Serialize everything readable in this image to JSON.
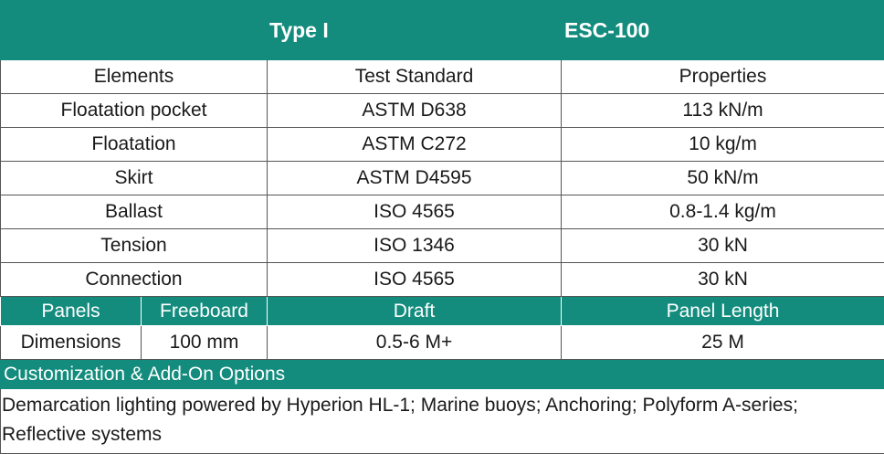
{
  "title": {
    "type": "Type I",
    "model": "ESC-100"
  },
  "columns": {
    "elements": "Elements",
    "standard": "Test Standard",
    "properties": "Properties"
  },
  "rows": [
    {
      "element": "Floatation pocket",
      "standard": "ASTM D638",
      "property": "113 kN/m"
    },
    {
      "element": "Floatation",
      "standard": "ASTM C272",
      "property": "10 kg/m"
    },
    {
      "element": "Skirt",
      "standard": "ASTM D4595",
      "property": "50 kN/m"
    },
    {
      "element": "Ballast",
      "standard": "ISO 4565",
      "property": "0.8-1.4 kg/m"
    },
    {
      "element": "Tension",
      "standard": "ISO 1346",
      "property": "30 kN"
    },
    {
      "element": "Connection",
      "standard": "ISO 4565",
      "property": "30 kN"
    }
  ],
  "panel_header": {
    "panels": "Panels",
    "freeboard": "Freeboard",
    "draft": "Draft",
    "panel_length": "Panel Length"
  },
  "dimensions": {
    "label": "Dimensions",
    "freeboard": "100 mm",
    "draft": "0.5-6 M+",
    "panel_length": "25 M"
  },
  "customization": {
    "heading": "Customization & Add-On Options",
    "text": "Demarcation lighting powered by Hyperion HL-1; Marine buoys; Anchoring; Polyform A-series; Reflective systems"
  },
  "colors": {
    "header_green": "#138c7d",
    "border": "#555555",
    "text": "#1a1a1a"
  }
}
